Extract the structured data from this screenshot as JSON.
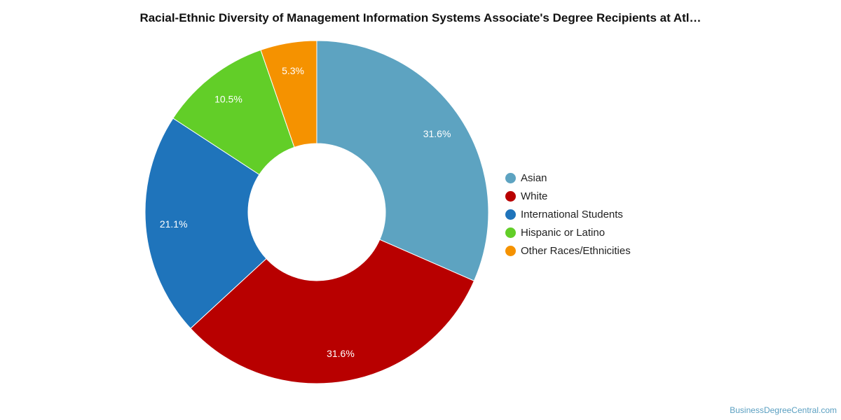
{
  "title": "Racial-Ethnic Diversity of Management Information Systems Associate's Degree Recipients at Atl…",
  "watermark": "BusinessDegreeCentral.com",
  "chart_data": {
    "type": "pie",
    "variant": "donut",
    "title": "Racial-Ethnic Diversity of Management Information Systems Associate's Degree Recipients at Atl…",
    "legend_position": "right",
    "slices": [
      {
        "label": "Asian",
        "value": 31.6,
        "display": "31.6%",
        "color": "#5da3c1"
      },
      {
        "label": "White",
        "value": 31.6,
        "display": "31.6%",
        "color": "#b80000"
      },
      {
        "label": "International Students",
        "value": 21.1,
        "display": "21.1%",
        "color": "#1f74bb"
      },
      {
        "label": "Hispanic or Latino",
        "value": 10.5,
        "display": "10.5%",
        "color": "#62ce28"
      },
      {
        "label": "Other Races/Ethnicities",
        "value": 5.3,
        "display": "5.3%",
        "color": "#f59200"
      }
    ]
  }
}
